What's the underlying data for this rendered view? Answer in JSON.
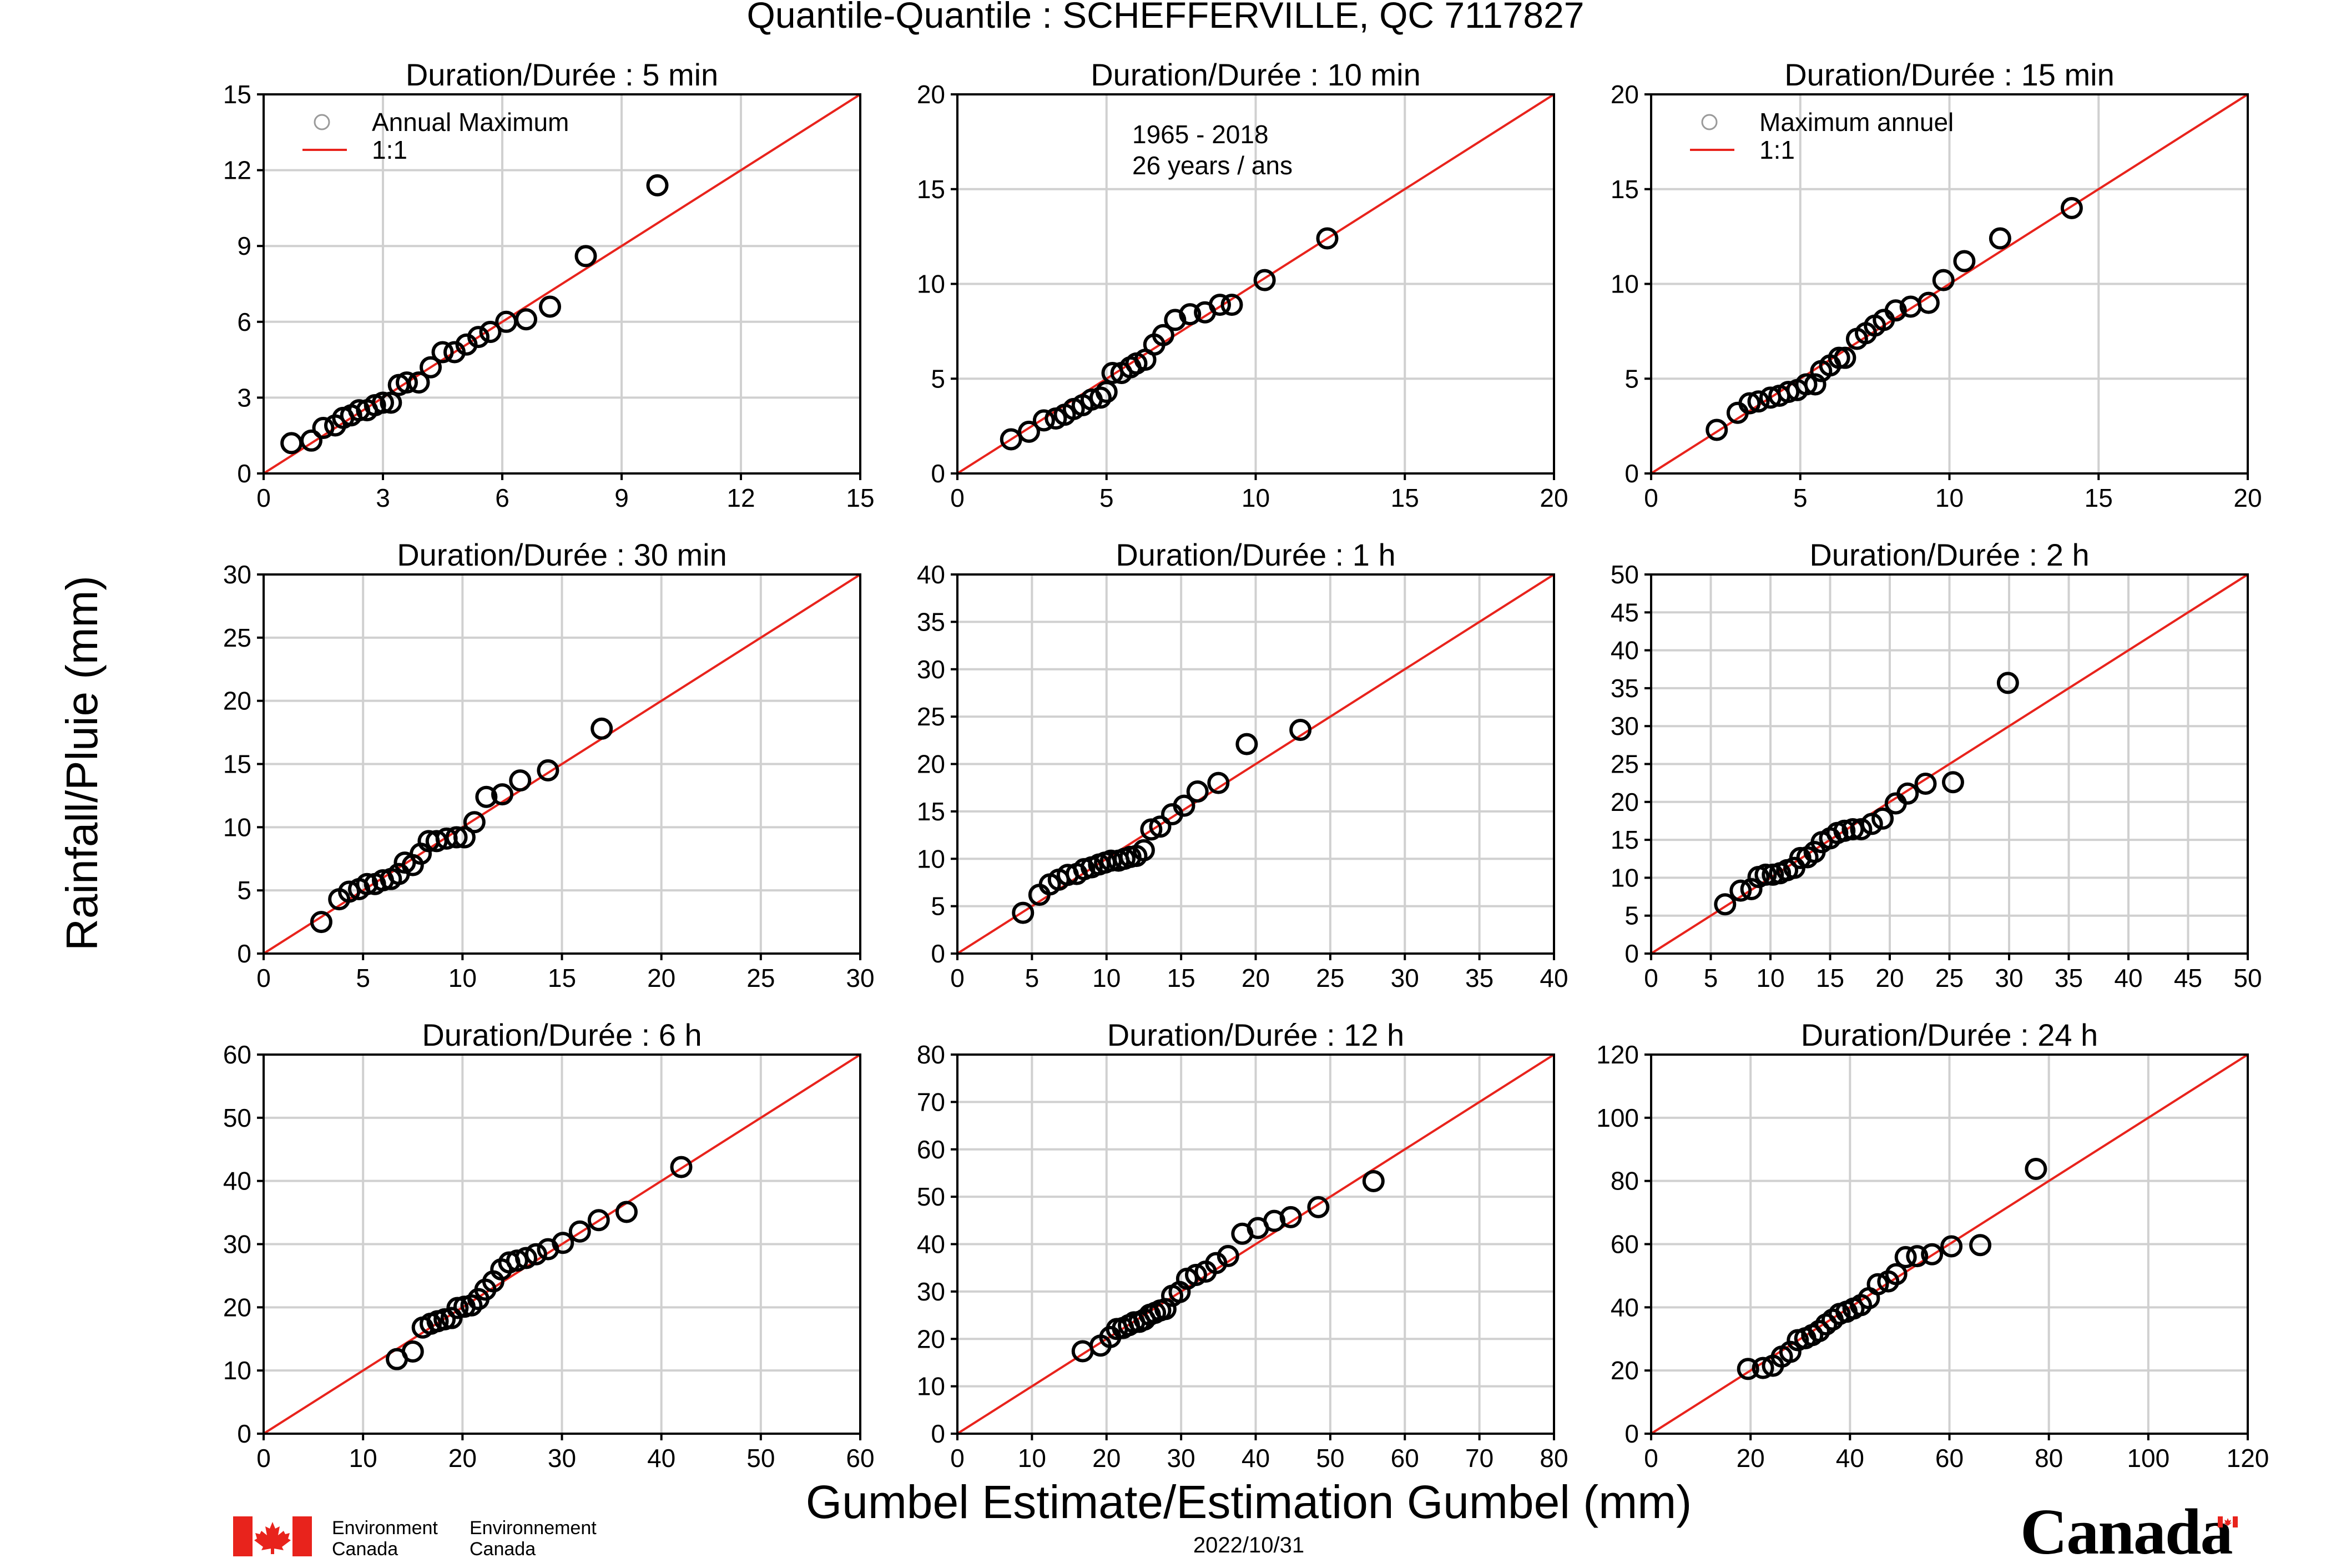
{
  "figure": {
    "title": "Quantile-Quantile : SCHEFFERVILLE, QC  7117827",
    "ylabel": "Rainfall/Pluie (mm)",
    "xlabel": "Gumbel Estimate/Estimation Gumbel (mm)",
    "date": "2022/10/31"
  },
  "footer": {
    "dept_en_line1": "Environment",
    "dept_en_line2": "Canada",
    "dept_fr_line1": "Environnement",
    "dept_fr_line2": "Canada",
    "wordmark": "Canada"
  },
  "colors": {
    "line": "#e8231c",
    "points": "#000000",
    "grid": "#d0d0d0"
  },
  "chart_data": [
    {
      "type": "scatter",
      "title": "Duration/Durée : 5 min",
      "xlim": [
        0,
        15
      ],
      "ylim": [
        0,
        15
      ],
      "xticks": [
        0,
        3,
        6,
        9,
        12,
        15
      ],
      "yticks": [
        0,
        3,
        6,
        9,
        12,
        15
      ],
      "reference_line": "1:1",
      "legend": {
        "location": "top-left",
        "entries": [
          "Annual Maximum",
          "1:1"
        ]
      },
      "points": [
        [
          0.7,
          1.2
        ],
        [
          1.2,
          1.3
        ],
        [
          1.5,
          1.8
        ],
        [
          1.8,
          1.9
        ],
        [
          2.0,
          2.2
        ],
        [
          2.2,
          2.3
        ],
        [
          2.4,
          2.5
        ],
        [
          2.6,
          2.5
        ],
        [
          2.8,
          2.7
        ],
        [
          3.0,
          2.8
        ],
        [
          3.2,
          2.8
        ],
        [
          3.4,
          3.5
        ],
        [
          3.6,
          3.6
        ],
        [
          3.9,
          3.6
        ],
        [
          4.2,
          4.2
        ],
        [
          4.5,
          4.8
        ],
        [
          4.8,
          4.8
        ],
        [
          5.1,
          5.1
        ],
        [
          5.4,
          5.4
        ],
        [
          5.7,
          5.6
        ],
        [
          6.1,
          6.0
        ],
        [
          6.6,
          6.1
        ],
        [
          7.2,
          6.6
        ],
        [
          8.1,
          8.6
        ],
        [
          9.9,
          11.4
        ]
      ]
    },
    {
      "type": "scatter",
      "title": "Duration/Durée : 10 min",
      "xlim": [
        0,
        20
      ],
      "ylim": [
        0,
        20
      ],
      "xticks": [
        0,
        5,
        10,
        15,
        20
      ],
      "yticks": [
        0,
        5,
        10,
        15,
        20
      ],
      "reference_line": "1:1",
      "annotation": [
        "1965 - 2018",
        "26 years / ans"
      ],
      "points": [
        [
          1.8,
          1.8
        ],
        [
          2.4,
          2.2
        ],
        [
          2.9,
          2.8
        ],
        [
          3.3,
          2.9
        ],
        [
          3.6,
          3.1
        ],
        [
          3.9,
          3.4
        ],
        [
          4.2,
          3.6
        ],
        [
          4.5,
          3.9
        ],
        [
          4.8,
          4.0
        ],
        [
          5.0,
          4.3
        ],
        [
          5.2,
          5.3
        ],
        [
          5.5,
          5.3
        ],
        [
          5.8,
          5.6
        ],
        [
          6.0,
          5.8
        ],
        [
          6.3,
          6.0
        ],
        [
          6.6,
          6.8
        ],
        [
          6.9,
          7.3
        ],
        [
          7.3,
          8.1
        ],
        [
          7.8,
          8.4
        ],
        [
          8.3,
          8.5
        ],
        [
          9.2,
          8.9
        ],
        [
          8.8,
          8.9
        ],
        [
          10.3,
          10.2
        ],
        [
          12.4,
          12.4
        ]
      ]
    },
    {
      "type": "scatter",
      "title": "Duration/Durée : 15 min",
      "xlim": [
        0,
        20
      ],
      "ylim": [
        0,
        20
      ],
      "xticks": [
        0,
        5,
        10,
        15,
        20
      ],
      "yticks": [
        0,
        5,
        10,
        15,
        20
      ],
      "reference_line": "1:1",
      "legend": {
        "location": "top-left",
        "entries": [
          "Maximum annuel",
          "1:1"
        ]
      },
      "points": [
        [
          2.2,
          2.3
        ],
        [
          2.9,
          3.2
        ],
        [
          3.3,
          3.7
        ],
        [
          3.6,
          3.8
        ],
        [
          4.0,
          4.0
        ],
        [
          4.3,
          4.1
        ],
        [
          4.6,
          4.3
        ],
        [
          4.9,
          4.4
        ],
        [
          5.2,
          4.7
        ],
        [
          5.5,
          4.7
        ],
        [
          5.7,
          5.4
        ],
        [
          6.0,
          5.7
        ],
        [
          6.3,
          6.1
        ],
        [
          6.5,
          6.1
        ],
        [
          6.9,
          7.1
        ],
        [
          7.2,
          7.4
        ],
        [
          7.5,
          7.8
        ],
        [
          7.8,
          8.1
        ],
        [
          8.2,
          8.6
        ],
        [
          8.7,
          8.8
        ],
        [
          9.3,
          9.0
        ],
        [
          9.8,
          10.2
        ],
        [
          10.5,
          11.2
        ],
        [
          11.7,
          12.4
        ],
        [
          14.1,
          14.0
        ]
      ]
    },
    {
      "type": "scatter",
      "title": "Duration/Durée : 30 min",
      "xlim": [
        0,
        30
      ],
      "ylim": [
        0,
        30
      ],
      "xticks": [
        0,
        5,
        10,
        15,
        20,
        25,
        30
      ],
      "yticks": [
        0,
        5,
        10,
        15,
        20,
        25,
        30
      ],
      "reference_line": "1:1",
      "points": [
        [
          2.9,
          2.5
        ],
        [
          3.8,
          4.3
        ],
        [
          4.3,
          4.9
        ],
        [
          4.8,
          5.1
        ],
        [
          5.2,
          5.5
        ],
        [
          5.6,
          5.5
        ],
        [
          6.0,
          5.8
        ],
        [
          6.4,
          5.9
        ],
        [
          6.8,
          6.3
        ],
        [
          7.1,
          7.2
        ],
        [
          7.5,
          7.0
        ],
        [
          7.9,
          7.9
        ],
        [
          8.3,
          8.9
        ],
        [
          8.7,
          8.9
        ],
        [
          9.2,
          9.1
        ],
        [
          9.7,
          9.2
        ],
        [
          10.1,
          9.2
        ],
        [
          10.6,
          10.4
        ],
        [
          11.2,
          12.4
        ],
        [
          12.0,
          12.6
        ],
        [
          12.9,
          13.7
        ],
        [
          14.3,
          14.5
        ],
        [
          17.0,
          17.8
        ]
      ]
    },
    {
      "type": "scatter",
      "title": "Duration/Durée : 1 h",
      "xlim": [
        0,
        40
      ],
      "ylim": [
        0,
        40
      ],
      "xticks": [
        0,
        5,
        10,
        15,
        20,
        25,
        30,
        35,
        40
      ],
      "yticks": [
        0,
        5,
        10,
        15,
        20,
        25,
        30,
        35,
        40
      ],
      "reference_line": "1:1",
      "points": [
        [
          4.4,
          4.3
        ],
        [
          5.5,
          6.2
        ],
        [
          6.2,
          7.3
        ],
        [
          6.8,
          7.8
        ],
        [
          7.4,
          8.3
        ],
        [
          8.0,
          8.4
        ],
        [
          8.5,
          8.9
        ],
        [
          9.0,
          9.1
        ],
        [
          9.5,
          9.4
        ],
        [
          9.9,
          9.6
        ],
        [
          10.3,
          9.8
        ],
        [
          10.8,
          9.8
        ],
        [
          11.2,
          10.0
        ],
        [
          11.6,
          10.2
        ],
        [
          12.0,
          10.3
        ],
        [
          12.5,
          10.9
        ],
        [
          13.0,
          13.1
        ],
        [
          13.6,
          13.4
        ],
        [
          14.4,
          14.7
        ],
        [
          15.2,
          15.6
        ],
        [
          16.1,
          17.1
        ],
        [
          17.5,
          18.0
        ],
        [
          19.4,
          22.1
        ],
        [
          23.0,
          23.6
        ]
      ]
    },
    {
      "type": "scatter",
      "title": "Duration/Durée : 2 h",
      "xlim": [
        0,
        50
      ],
      "ylim": [
        0,
        50
      ],
      "xticks": [
        0,
        5,
        10,
        15,
        20,
        25,
        30,
        35,
        40,
        45,
        50
      ],
      "yticks": [
        0,
        5,
        10,
        15,
        20,
        25,
        30,
        35,
        40,
        45,
        50
      ],
      "reference_line": "1:1",
      "points": [
        [
          6.2,
          6.5
        ],
        [
          7.5,
          8.3
        ],
        [
          8.4,
          8.5
        ],
        [
          9.0,
          10.1
        ],
        [
          9.6,
          10.4
        ],
        [
          10.2,
          10.4
        ],
        [
          10.8,
          10.6
        ],
        [
          11.4,
          11.0
        ],
        [
          12.0,
          11.3
        ],
        [
          12.5,
          12.6
        ],
        [
          13.1,
          12.7
        ],
        [
          13.7,
          13.4
        ],
        [
          14.3,
          14.7
        ],
        [
          15.0,
          15.2
        ],
        [
          15.6,
          15.9
        ],
        [
          16.2,
          16.2
        ],
        [
          16.9,
          16.4
        ],
        [
          17.6,
          16.4
        ],
        [
          18.5,
          17.1
        ],
        [
          19.4,
          17.8
        ],
        [
          20.5,
          19.8
        ],
        [
          21.5,
          21.1
        ],
        [
          23.0,
          22.4
        ],
        [
          25.3,
          22.6
        ],
        [
          29.9,
          35.7
        ]
      ]
    },
    {
      "type": "scatter",
      "title": "Duration/Durée : 6 h",
      "xlim": [
        0,
        60
      ],
      "ylim": [
        0,
        60
      ],
      "xticks": [
        0,
        10,
        20,
        30,
        40,
        50,
        60
      ],
      "yticks": [
        0,
        10,
        20,
        30,
        40,
        50,
        60
      ],
      "reference_line": "1:1",
      "points": [
        [
          13.4,
          11.8
        ],
        [
          15.0,
          13.0
        ],
        [
          16.0,
          16.8
        ],
        [
          16.8,
          17.4
        ],
        [
          17.5,
          17.8
        ],
        [
          18.2,
          18.1
        ],
        [
          18.9,
          18.3
        ],
        [
          19.5,
          19.9
        ],
        [
          20.2,
          20.1
        ],
        [
          20.9,
          20.3
        ],
        [
          21.6,
          21.3
        ],
        [
          22.3,
          22.8
        ],
        [
          23.1,
          24.1
        ],
        [
          23.9,
          26.0
        ],
        [
          24.7,
          27.1
        ],
        [
          25.5,
          27.4
        ],
        [
          26.4,
          27.8
        ],
        [
          27.4,
          28.4
        ],
        [
          28.6,
          29.2
        ],
        [
          30.1,
          30.2
        ],
        [
          31.8,
          32.0
        ],
        [
          33.7,
          33.8
        ],
        [
          36.5,
          35.1
        ],
        [
          42.0,
          42.2
        ]
      ]
    },
    {
      "type": "scatter",
      "title": "Duration/Durée : 12 h",
      "xlim": [
        0,
        80
      ],
      "ylim": [
        0,
        80
      ],
      "xticks": [
        0,
        10,
        20,
        30,
        40,
        50,
        60,
        70,
        80
      ],
      "yticks": [
        0,
        10,
        20,
        30,
        40,
        50,
        60,
        70,
        80
      ],
      "reference_line": "1:1",
      "points": [
        [
          16.8,
          17.4
        ],
        [
          19.2,
          18.6
        ],
        [
          20.5,
          20.4
        ],
        [
          21.4,
          22.1
        ],
        [
          22.2,
          22.3
        ],
        [
          23.0,
          22.9
        ],
        [
          23.7,
          23.5
        ],
        [
          24.4,
          23.6
        ],
        [
          25.1,
          24.1
        ],
        [
          25.8,
          25.1
        ],
        [
          26.5,
          25.5
        ],
        [
          27.2,
          26.0
        ],
        [
          27.9,
          26.3
        ],
        [
          28.8,
          29.1
        ],
        [
          29.8,
          29.9
        ],
        [
          30.8,
          32.7
        ],
        [
          32.0,
          33.5
        ],
        [
          33.3,
          34.2
        ],
        [
          34.7,
          36.0
        ],
        [
          36.3,
          37.5
        ],
        [
          38.2,
          42.2
        ],
        [
          40.3,
          43.4
        ],
        [
          42.5,
          44.9
        ],
        [
          44.7,
          45.7
        ],
        [
          48.4,
          47.8
        ],
        [
          55.8,
          53.3
        ]
      ]
    },
    {
      "type": "scatter",
      "title": "Duration/Durée : 24 h",
      "xlim": [
        0,
        120
      ],
      "ylim": [
        0,
        120
      ],
      "xticks": [
        0,
        20,
        40,
        60,
        80,
        100,
        120
      ],
      "yticks": [
        0,
        20,
        40,
        60,
        80,
        100,
        120
      ],
      "reference_line": "1:1",
      "points": [
        [
          19.5,
          20.5
        ],
        [
          22.5,
          20.8
        ],
        [
          24.5,
          21.5
        ],
        [
          26.3,
          24.4
        ],
        [
          28.0,
          25.9
        ],
        [
          29.5,
          29.6
        ],
        [
          31.0,
          30.2
        ],
        [
          32.4,
          31.2
        ],
        [
          33.8,
          32.5
        ],
        [
          35.2,
          34.6
        ],
        [
          36.5,
          36.1
        ],
        [
          37.9,
          37.9
        ],
        [
          39.3,
          38.6
        ],
        [
          40.7,
          39.6
        ],
        [
          42.2,
          40.7
        ],
        [
          43.8,
          42.9
        ],
        [
          45.6,
          47.3
        ],
        [
          47.7,
          48.2
        ],
        [
          49.3,
          50.5
        ],
        [
          51.2,
          55.9
        ],
        [
          53.5,
          56.2
        ],
        [
          56.5,
          56.8
        ],
        [
          60.4,
          59.3
        ],
        [
          66.2,
          59.7
        ],
        [
          77.4,
          83.8
        ]
      ]
    }
  ]
}
